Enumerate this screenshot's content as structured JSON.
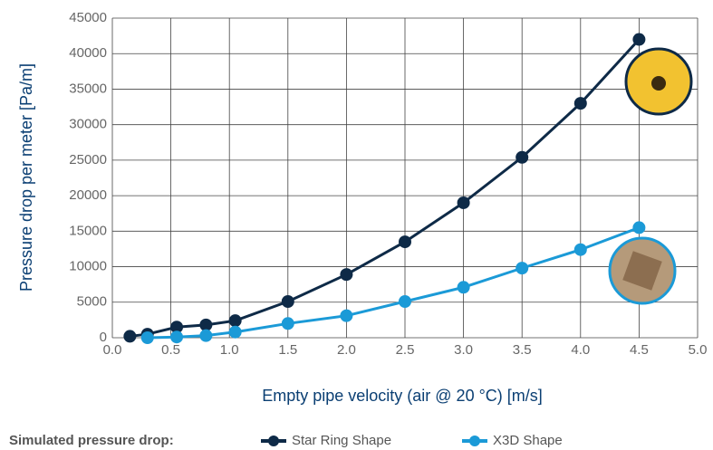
{
  "chart_data": {
    "type": "line",
    "x_label": "Empty pipe velocity (air @ 20 °C) [m/s]",
    "y_label": "Pressure drop per meter [Pa/m]",
    "legend_title": "Simulated pressure drop:",
    "legend_position": "bottom",
    "grid": true,
    "xlim": [
      0,
      5
    ],
    "xticks": [
      {
        "value": 0,
        "label": "0.0"
      },
      {
        "value": 0.5,
        "label": "0.5"
      },
      {
        "value": 1,
        "label": "1.0"
      },
      {
        "value": 1.5,
        "label": "1.5"
      },
      {
        "value": 2,
        "label": "2.0"
      },
      {
        "value": 2.5,
        "label": "2.5"
      },
      {
        "value": 3,
        "label": "3.0"
      },
      {
        "value": 3.5,
        "label": "3.5"
      },
      {
        "value": 4,
        "label": "4.0"
      },
      {
        "value": 4.5,
        "label": "4.5"
      },
      {
        "value": 5,
        "label": "5.0"
      }
    ],
    "ylim": [
      0,
      45000
    ],
    "yticks": [
      0,
      5000,
      10000,
      15000,
      20000,
      25000,
      30000,
      35000,
      40000,
      45000
    ],
    "series": [
      {
        "name": "Star Ring Shape",
        "color": "#0e2a47",
        "x": [
          0.15,
          0.3,
          0.55,
          0.8,
          1.05,
          1.5,
          2.0,
          2.5,
          3.0,
          3.5,
          4.0,
          4.5
        ],
        "values": [
          200,
          500,
          1500,
          1800,
          2400,
          5100,
          8900,
          13500,
          19000,
          25400,
          33000,
          42000
        ]
      },
      {
        "name": "X3D Shape",
        "color": "#1b9ad7",
        "x": [
          0.3,
          0.55,
          0.8,
          1.05,
          1.5,
          2.0,
          2.5,
          3.0,
          3.5,
          4.0,
          4.5
        ],
        "values": [
          0,
          100,
          300,
          800,
          2000,
          3100,
          5100,
          7100,
          9800,
          12400,
          15500
        ]
      }
    ]
  }
}
